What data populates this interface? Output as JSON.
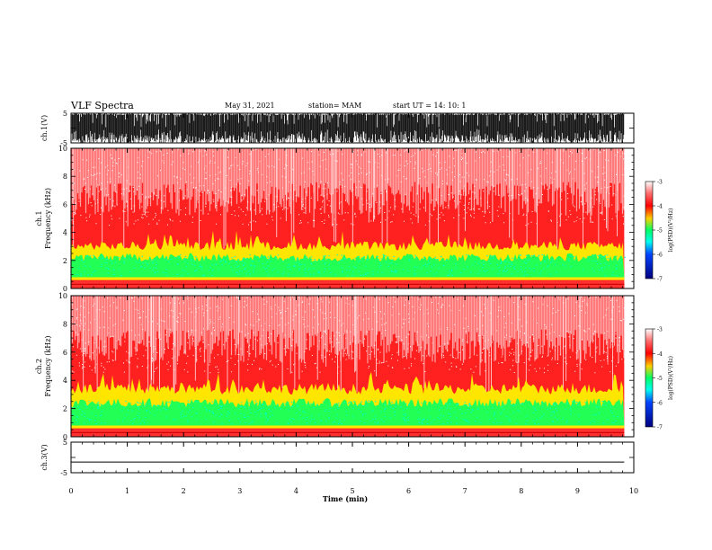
{
  "header": {
    "title": "VLF Spectra",
    "date": "May 31, 2021",
    "station": "station= MAM",
    "start": "start  UT =   14: 10: 1"
  },
  "chart_data": [
    {
      "type": "line",
      "panel": "ch1-waveform",
      "ylabel": "ch.1(V)",
      "ylim": [
        -5,
        5
      ],
      "yticks": [
        "5",
        "-5"
      ],
      "x_range_min": [
        0,
        10
      ],
      "data_end_min": 9.83,
      "note_values": "dense impulsive signal spanning full range"
    },
    {
      "type": "heatmap",
      "panel": "ch1-spectrogram",
      "ylabel": "Frequency (kHz)",
      "ylabel_channel": "ch.1",
      "ylim": [
        0,
        10
      ],
      "yticks": [
        "0",
        "2",
        "4",
        "6",
        "8",
        "10"
      ],
      "colorbar": {
        "label": "log(PSD)(V²/Hz)",
        "range": [
          -7,
          -3
        ],
        "ticks": [
          "-3",
          "-4",
          "-5",
          "-6",
          "-7"
        ]
      },
      "bands_khz": {
        "low_line": 0.3,
        "green_top": 2.4,
        "yellow_top": 3.2
      }
    },
    {
      "type": "heatmap",
      "panel": "ch2-spectrogram",
      "ylabel": "Frequency (kHz)",
      "ylabel_channel": "ch.2",
      "ylim": [
        0,
        10
      ],
      "yticks": [
        "0",
        "2",
        "4",
        "6",
        "8",
        "10"
      ],
      "colorbar": {
        "label": "log(PSD)(V²/Hz)",
        "range": [
          -7,
          -3
        ],
        "ticks": [
          "-3",
          "-4",
          "-5",
          "-6",
          "-7"
        ]
      },
      "bands_khz": {
        "low_line": 0.3,
        "green_top": 2.6,
        "yellow_top": 3.6
      }
    },
    {
      "type": "line",
      "panel": "ch3-waveform",
      "ylabel": "ch.3(V)",
      "ylim": [
        -5,
        5
      ],
      "yticks": [
        "5",
        "-5"
      ],
      "values_constant": -1.5
    }
  ],
  "xaxis": {
    "label": "Time (min)",
    "ticks": [
      "0",
      "1",
      "2",
      "3",
      "4",
      "5",
      "6",
      "7",
      "8",
      "9",
      "10"
    ],
    "range": [
      0,
      10
    ]
  },
  "colors": {
    "spec_high": "#ff0000",
    "spec_mid": "#ffff00",
    "spec_green": "#00ff66",
    "background": "#ffffff"
  }
}
